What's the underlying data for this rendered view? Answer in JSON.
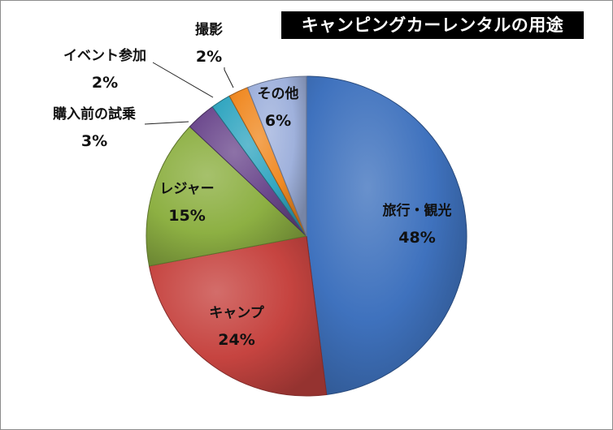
{
  "chart_data": {
    "type": "pie",
    "title": "キャンピングカーレンタルの用途",
    "slices": [
      {
        "label": "旅行・観光",
        "value": 48,
        "display": "48%",
        "color": "#3f72be"
      },
      {
        "label": "キャンプ",
        "value": 24,
        "display": "24%",
        "color": "#c64440"
      },
      {
        "label": "レジャー",
        "value": 15,
        "display": "15%",
        "color": "#8db043"
      },
      {
        "label": "購入前の試乗",
        "value": 3,
        "display": "3%",
        "color": "#6d4a8e"
      },
      {
        "label": "イベント参加",
        "value": 2,
        "display": "2%",
        "color": "#34a7c1"
      },
      {
        "label": "撮影",
        "value": 2,
        "display": "2%",
        "color": "#f08a24"
      },
      {
        "label": "その他",
        "value": 6,
        "display": "6%",
        "color": "#9fb1dc"
      }
    ],
    "start": "12 o'clock",
    "direction": "clockwise",
    "style": "shaded 3D-look slices, leader lines for small slices"
  }
}
